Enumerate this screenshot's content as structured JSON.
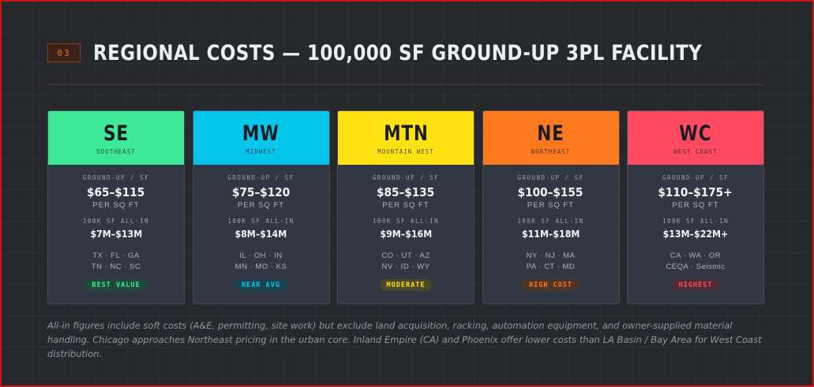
{
  "header": {
    "section_number": "03",
    "title": "REGIONAL COSTS — 100,000 SF GROUND-UP 3PL FACILITY"
  },
  "cards": [
    {
      "code": "SE",
      "region": "Southeast",
      "color": "#3de897",
      "ground_label": "Ground-up / SF",
      "price": "$65–$115",
      "per_sf": "PER SQ FT",
      "allin_label": "100K SF All-in",
      "allin": "$7M–$13M",
      "states_line1": "TX · FL · GA",
      "states_line2": "TN · NC · SC",
      "badge": "BEST VALUE",
      "badge_color": "#3de897",
      "badge_bg": "#21483a"
    },
    {
      "code": "MW",
      "region": "Midwest",
      "color": "#06c6ec",
      "ground_label": "Ground-up / SF",
      "price": "$75–$120",
      "per_sf": "PER SQ FT",
      "allin_label": "100K SF All-in",
      "allin": "$8M–$14M",
      "states_line1": "IL · OH · IN",
      "states_line2": "MN · MO · KS",
      "badge": "NEAR AVG",
      "badge_color": "#06c6ec",
      "badge_bg": "#1b4250"
    },
    {
      "code": "MTN",
      "region": "Mountain West",
      "color": "#ffe212",
      "ground_label": "Ground-up / SF",
      "price": "$85–$135",
      "per_sf": "PER SQ FT",
      "allin_label": "100K SF All-in",
      "allin": "$9M–$16M",
      "states_line1": "CO · UT · AZ",
      "states_line2": "NV · ID · WY",
      "badge": "MODERATE",
      "badge_color": "#ffe212",
      "badge_bg": "#4a4a2a"
    },
    {
      "code": "NE",
      "region": "Northeast",
      "color": "#ff7a1e",
      "ground_label": "Ground-up / SF",
      "price": "$100–$155",
      "per_sf": "PER SQ FT",
      "allin_label": "100K SF All-in",
      "allin": "$11M–$18M",
      "states_line1": "NY · NJ · MA",
      "states_line2": "PA · CT · MD",
      "badge": "HIGH COST",
      "badge_color": "#ff7a1e",
      "badge_bg": "#4f3528"
    },
    {
      "code": "WC",
      "region": "West Coast",
      "color": "#ff4a62",
      "ground_label": "Ground-up / SF",
      "price": "$110–$175+",
      "per_sf": "PER SQ FT",
      "allin_label": "100K SF All-in",
      "allin": "$13M–$22M+",
      "states_line1": "CA · WA · OR",
      "states_line2": "CEQA · Seismic",
      "badge": "HIGHEST",
      "badge_color": "#ff4a62",
      "badge_bg": "#4f2c36"
    }
  ],
  "footnote": "All-in figures include soft costs (A&E, permitting, site work) but exclude land acquisition, racking, automation equipment, and owner-supplied material handling. Chicago approaches Northeast pricing in the urban core. Inland Empire (CA) and Phoenix offer lower costs than LA Basin / Bay Area for West Coast distribution."
}
